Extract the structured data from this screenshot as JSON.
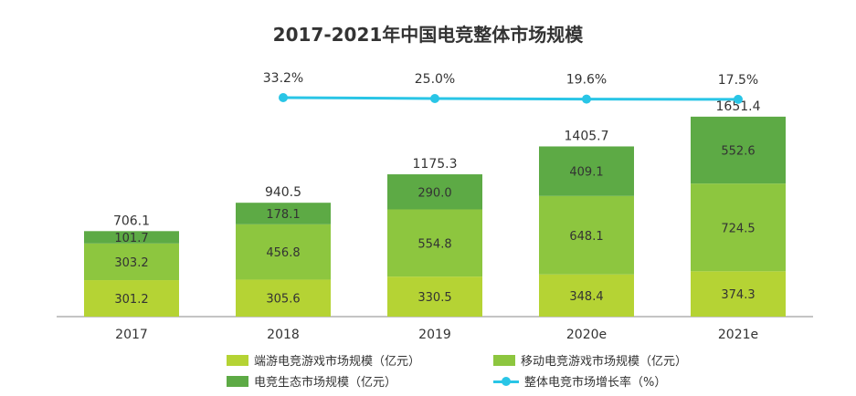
{
  "chart_data": {
    "type": "bar",
    "stacked": true,
    "title": "2017-2021年中国电竞整体市场规模",
    "categories": [
      "2017",
      "2018",
      "2019",
      "2020e",
      "2021e"
    ],
    "totals": [
      "706.1",
      "940.5",
      "1175.3",
      "1405.7",
      "1651.4"
    ],
    "series": [
      {
        "name": "端游电竞游戏市场规模（亿元）",
        "values": [
          301.2,
          305.6,
          330.5,
          348.4,
          374.3
        ],
        "color": "#b5d334"
      },
      {
        "name": "移动电竞游戏市场规模（亿元）",
        "values": [
          303.2,
          456.8,
          554.8,
          648.1,
          724.5
        ],
        "color": "#8dc63f"
      },
      {
        "name": "电竞生态市场规模（亿元）",
        "values": [
          101.7,
          178.1,
          290.0,
          409.1,
          552.6
        ],
        "color": "#5daa45"
      }
    ],
    "line_series": {
      "name": "整体电竞市场增长率（%）",
      "categories": [
        "2018",
        "2019",
        "2020e",
        "2021e"
      ],
      "values": [
        33.2,
        25.0,
        19.6,
        17.5
      ],
      "labels": [
        "33.2%",
        "25.0%",
        "19.6%",
        "17.5%"
      ],
      "color": "#29c5e6"
    },
    "ylim": [
      0,
      1700
    ],
    "grid": false,
    "legend_position": "bottom"
  }
}
